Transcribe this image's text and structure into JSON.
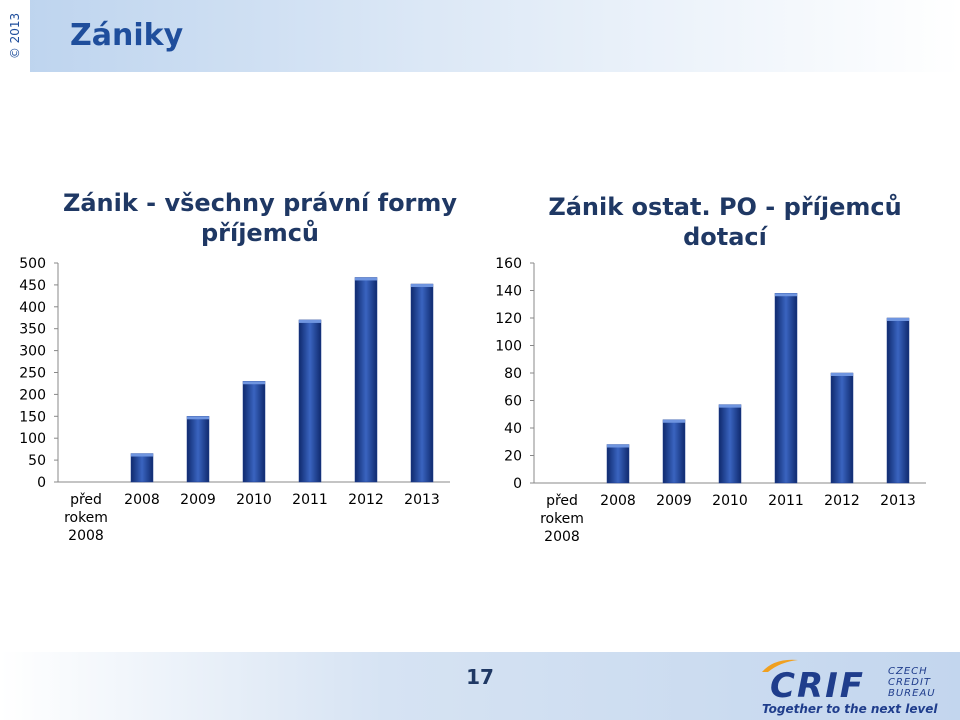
{
  "header": {
    "copyright": "© 2013",
    "title": "Zániky"
  },
  "footer": {
    "page_number": "17",
    "logo_text": "CRIF",
    "logo_sub": [
      "CZECH",
      "CREDIT",
      "BUREAU"
    ],
    "tagline": "Together to the next level"
  },
  "colors": {
    "bar_fill": "#1f3d8c",
    "title_blue": "#1f4e9c"
  },
  "chart_data": [
    {
      "type": "bar",
      "title": "Zánik - všechny právní formy příjemců",
      "categories": [
        "před rokem 2008",
        "2008",
        "2009",
        "2010",
        "2011",
        "2012",
        "2013"
      ],
      "category_lines": [
        [
          "před",
          "rokem",
          "2008"
        ],
        [
          "2008"
        ],
        [
          "2009"
        ],
        [
          "2010"
        ],
        [
          "2011"
        ],
        [
          "2012"
        ],
        [
          "2013"
        ]
      ],
      "values": [
        0,
        65,
        150,
        230,
        370,
        467,
        452
      ],
      "ylim": [
        0,
        500
      ],
      "yticks": [
        0,
        50,
        100,
        150,
        200,
        250,
        300,
        350,
        400,
        450,
        500
      ],
      "grid": false,
      "xlabel": "",
      "ylabel": ""
    },
    {
      "type": "bar",
      "title": "Zánik ostat. PO - příjemců dotací",
      "categories": [
        "před rokem 2008",
        "2008",
        "2009",
        "2010",
        "2011",
        "2012",
        "2013"
      ],
      "category_lines": [
        [
          "před",
          "rokem",
          "2008"
        ],
        [
          "2008"
        ],
        [
          "2009"
        ],
        [
          "2010"
        ],
        [
          "2011"
        ],
        [
          "2012"
        ],
        [
          "2013"
        ]
      ],
      "values": [
        0,
        28,
        46,
        57,
        138,
        80,
        120
      ],
      "ylim": [
        0,
        160
      ],
      "yticks": [
        0,
        20,
        40,
        60,
        80,
        100,
        120,
        140,
        160
      ],
      "grid": false,
      "xlabel": "",
      "ylabel": ""
    }
  ]
}
